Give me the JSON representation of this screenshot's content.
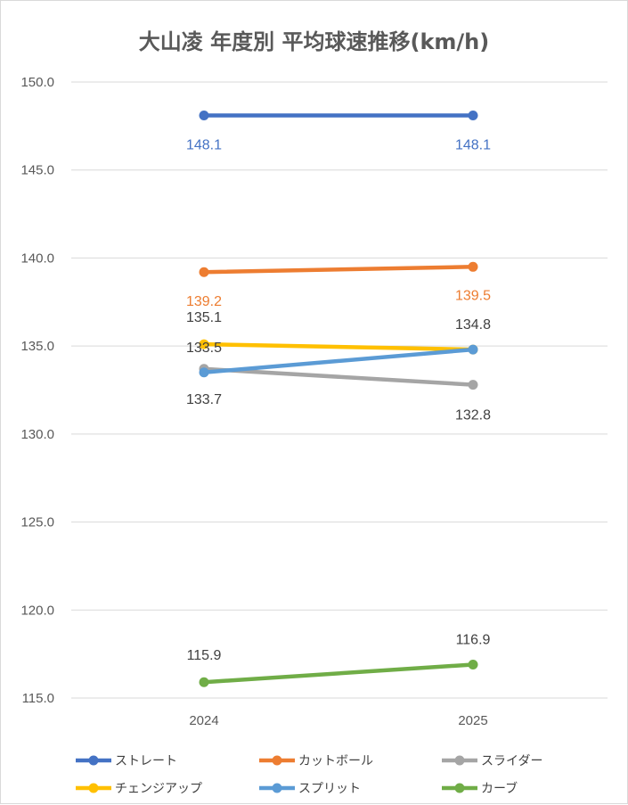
{
  "chart_data": {
    "type": "line",
    "title": "大山凌 年度別 平均球速推移(km/h)",
    "categories": [
      "2024",
      "2025"
    ],
    "ylim": [
      115,
      150
    ],
    "y_ticks": [
      "115.0",
      "120.0",
      "125.0",
      "130.0",
      "135.0",
      "140.0",
      "145.0",
      "150.0"
    ],
    "grid": true,
    "legend_position": "bottom",
    "series": [
      {
        "name": "ストレート",
        "color": "#4472C4",
        "values": [
          148.1,
          148.1
        ],
        "labels": [
          "148.1",
          "148.1"
        ],
        "label_color": "#4472C4"
      },
      {
        "name": "カットボール",
        "color": "#ED7D31",
        "values": [
          139.2,
          139.5
        ],
        "labels": [
          "139.2",
          "139.5"
        ],
        "label_color": "#ED7D31"
      },
      {
        "name": "スライダー",
        "color": "#A5A5A5",
        "values": [
          133.7,
          132.8
        ],
        "labels": [
          "133.7",
          "132.8"
        ],
        "label_color": "#404040"
      },
      {
        "name": "チェンジアップ",
        "color": "#FFC000",
        "values": [
          135.1,
          134.8
        ],
        "labels": [
          "135.1",
          "134.8"
        ],
        "label_color": "#404040"
      },
      {
        "name": "スプリット",
        "color": "#5B9BD5",
        "values": [
          133.5,
          134.8
        ],
        "labels": [
          "133.5",
          "134.8"
        ],
        "label_color": "#404040"
      },
      {
        "name": "カーブ",
        "color": "#70AD47",
        "values": [
          115.9,
          116.9
        ],
        "labels": [
          "115.9",
          "116.9"
        ],
        "label_color": "#404040"
      }
    ]
  }
}
